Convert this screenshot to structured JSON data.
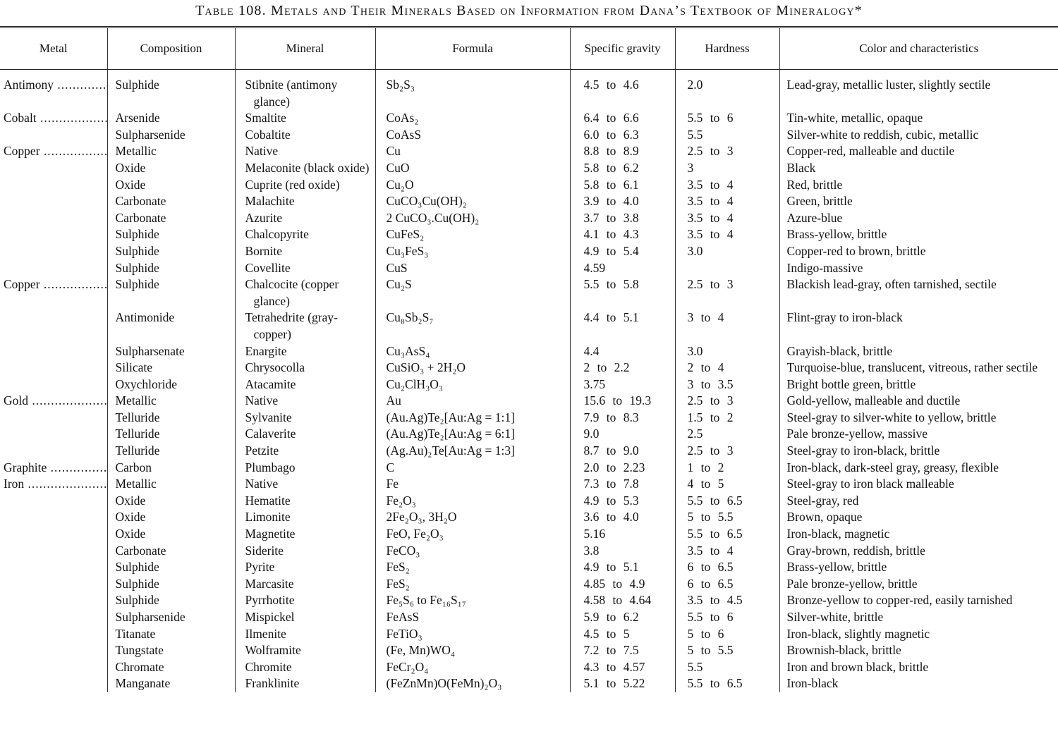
{
  "title": "Table 108. Metals and Their Minerals Based on Information from Dana’s Textbook of Mineralogy*",
  "table": {
    "columns": [
      "Metal",
      "Composition",
      "Mineral",
      "Formula",
      "Specific gravity",
      "Hardness",
      "Color and characteristics"
    ],
    "rows": [
      [
        "Antimony",
        "Sulphide",
        "Stibnite (antimony glance)",
        "Sb₂S₃",
        "4.5 to 4.6",
        "2.0",
        "Lead-gray, metallic luster, slightly sectile"
      ],
      [
        "Cobalt",
        "Arsenide",
        "Smaltite",
        "CoAs₂",
        "6.4 to 6.6",
        "5.5 to 6",
        "Tin-white, metallic, opaque"
      ],
      [
        null,
        "Sulpharsenide",
        "Cobaltite",
        "CoAsS",
        "6.0 to 6.3",
        "5.5",
        "Silver-white to reddish, cubic, metallic"
      ],
      [
        "Copper",
        "Metallic",
        "Native",
        "Cu",
        "8.8 to 8.9",
        "2.5 to 3",
        "Copper-red, malleable and ductile"
      ],
      [
        null,
        "Oxide",
        "Melaconite (black oxide)",
        "CuO",
        "5.8 to 6.2",
        "3",
        "Black"
      ],
      [
        null,
        "Oxide",
        "Cuprite (red oxide)",
        "Cu₂O",
        "5.8 to 6.1",
        "3.5 to 4",
        "Red, brittle"
      ],
      [
        null,
        "Carbonate",
        "Malachite",
        "CuCO₃Cu(OH)₂",
        "3.9 to 4.0",
        "3.5 to 4",
        "Green, brittle"
      ],
      [
        null,
        "Carbonate",
        "Azurite",
        "2 CuCO₃.Cu(OH)₂",
        "3.7 to 3.8",
        "3.5 to 4",
        "Azure-blue"
      ],
      [
        null,
        "Sulphide",
        "Chalcopyrite",
        "CuFeS₂",
        "4.1 to 4.3",
        "3.5 to 4",
        "Brass-yellow, brittle"
      ],
      [
        null,
        "Sulphide",
        "Bornite",
        "Cu₃FeS₃",
        "4.9 to 5.4",
        "3.0",
        "Copper-red to brown, brittle"
      ],
      [
        null,
        "Sulphide",
        "Covellite",
        "CuS",
        "4.59",
        null,
        "Indigo-massive"
      ],
      [
        "Copper",
        "Sulphide",
        "Chalcocite (copper glance)",
        "Cu₂S",
        "5.5 to 5.8",
        "2.5 to 3",
        "Blackish lead-gray, often tarnished, sectile"
      ],
      [
        null,
        "Antimonide",
        "Tetrahedrite (gray-copper)",
        "Cu₈Sb₂S₇",
        "4.4 to 5.1",
        "3 to 4",
        "Flint-gray to iron-black"
      ],
      [
        null,
        "Sulpharsenate",
        "Enargite",
        "Cu₃AsS₄",
        "4.4",
        "3.0",
        "Grayish-black, brittle"
      ],
      [
        null,
        "Silicate",
        "Chrysocolla",
        "CuSiO₃ + 2H₂O",
        "2 to 2.2",
        "2 to 4",
        "Turquoise-blue, translucent, vitreous, rather sectile"
      ],
      [
        null,
        "Oxychloride",
        "Atacamite",
        "Cu₂ClH₃O₃",
        "3.75",
        "3 to 3.5",
        "Bright bottle green, brittle"
      ],
      [
        "Gold",
        "Metallic",
        "Native",
        "Au",
        "15.6 to 19.3",
        "2.5 to 3",
        "Gold-yellow, malleable and ductile"
      ],
      [
        null,
        "Telluride",
        "Sylvanite",
        "(Au.Ag)Te₂[Au:Ag = 1:1]",
        "7.9 to 8.3",
        "1.5 to 2",
        "Steel-gray to silver-white to yellow, brittle"
      ],
      [
        null,
        "Telluride",
        "Calaverite",
        "(Au.Ag)Te₂[Au:Ag = 6:1]",
        "9.0",
        "2.5",
        "Pale bronze-yellow, massive"
      ],
      [
        null,
        "Telluride",
        "Petzite",
        "(Ag.Au)₂Te[Au:Ag = 1:3]",
        "8.7 to 9.0",
        "2.5 to 3",
        "Steel-gray to iron-black, brittle"
      ],
      [
        "Graphite",
        "Carbon",
        "Plumbago",
        "C",
        "2.0 to 2.23",
        "1 to 2",
        "Iron-black, dark-steel gray, greasy, flexible"
      ],
      [
        "Iron",
        "Metallic",
        "Native",
        "Fe",
        "7.3 to 7.8",
        "4 to 5",
        "Steel-gray to iron black malleable"
      ],
      [
        null,
        "Oxide",
        "Hematite",
        "Fe₂O₃",
        "4.9 to 5.3",
        "5.5 to 6.5",
        "Steel-gray, red"
      ],
      [
        null,
        "Oxide",
        "Limonite",
        "2Fe₂O₃, 3H₂O",
        "3.6 to 4.0",
        "5 to 5.5",
        "Brown, opaque"
      ],
      [
        null,
        "Oxide",
        "Magnetite",
        "FeO, Fe₂O₃",
        "5.16",
        "5.5 to 6.5",
        "Iron-black, magnetic"
      ],
      [
        null,
        "Carbonate",
        "Siderite",
        "FeCO₃",
        "3.8",
        "3.5 to 4",
        "Gray-brown, reddish, brittle"
      ],
      [
        null,
        "Sulphide",
        "Pyrite",
        "FeS₂",
        "4.9 to 5.1",
        "6 to 6.5",
        "Brass-yellow, brittle"
      ],
      [
        null,
        "Sulphide",
        "Marcasite",
        "FeS₂",
        "4.85 to 4.9",
        "6 to 6.5",
        "Pale bronze-yellow, brittle"
      ],
      [
        null,
        "Sulphide",
        "Pyrrhotite",
        "Fe₅S₆ to Fe₁₆S₁₇",
        "4.58 to 4.64",
        "3.5 to 4.5",
        "Bronze-yellow to copper-red, easily tarnished"
      ],
      [
        null,
        "Sulpharsenide",
        "Mispickel",
        "FeAsS",
        "5.9 to 6.2",
        "5.5 to 6",
        "Silver-white, brittle"
      ],
      [
        null,
        "Titanate",
        "Ilmenite",
        "FeTiO₃",
        "4.5 to 5",
        "5 to 6",
        "Iron-black, slightly magnetic"
      ],
      [
        null,
        "Tungstate",
        "Wolframite",
        "(Fe, Mn)WO₄",
        "7.2 to 7.5",
        "5 to 5.5",
        "Brownish-black, brittle"
      ],
      [
        null,
        "Chromate",
        "Chromite",
        "FeCr₂O₄",
        "4.3 to 4.57",
        "5.5",
        "Iron and brown black, brittle"
      ],
      [
        null,
        "Manganate",
        "Franklinite",
        "(FeZnMn)O(FeMn)₂O₃",
        "5.1 to 5.22",
        "5.5 to 6.5",
        "Iron-black"
      ]
    ]
  }
}
